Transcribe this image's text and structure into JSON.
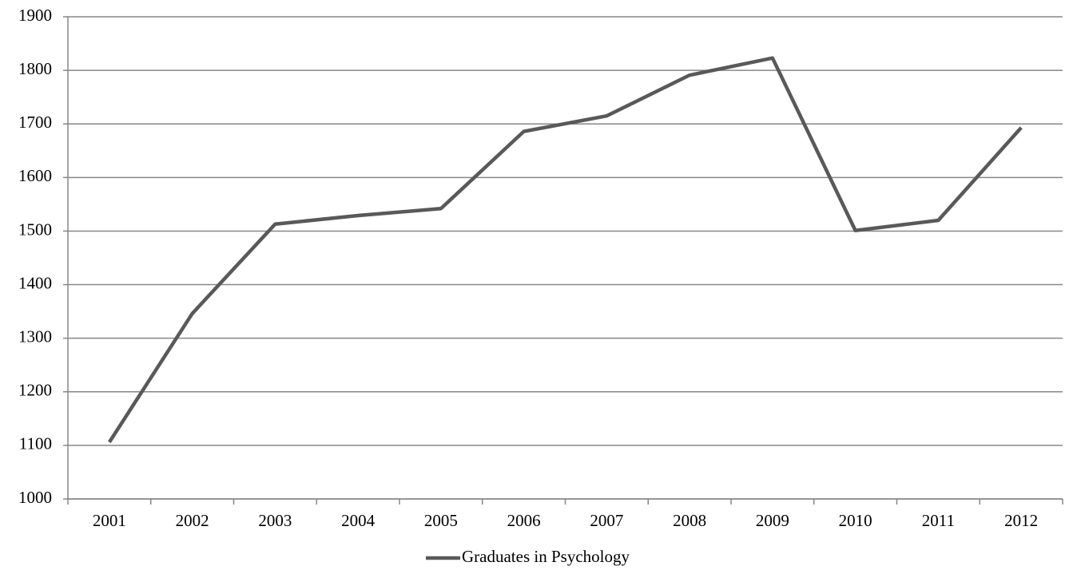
{
  "chart_data": {
    "type": "line",
    "categories": [
      "2001",
      "2002",
      "2003",
      "2004",
      "2005",
      "2006",
      "2007",
      "2008",
      "2009",
      "2010",
      "2011",
      "2012"
    ],
    "series": [
      {
        "name": "Graduates in Psychology",
        "color": "#595959",
        "values": [
          1106,
          1346,
          1513,
          1529,
          1542,
          1686,
          1715,
          1791,
          1823,
          1501,
          1520,
          1693
        ]
      }
    ],
    "ylim": [
      1000,
      1900
    ],
    "yticks": [
      1000,
      1100,
      1200,
      1300,
      1400,
      1500,
      1600,
      1700,
      1800,
      1900
    ],
    "grid": true,
    "legend": "bottom"
  }
}
